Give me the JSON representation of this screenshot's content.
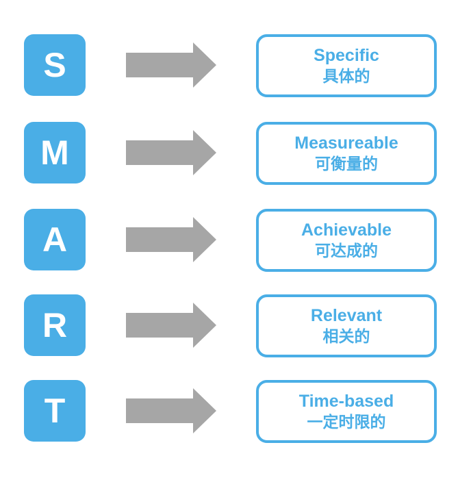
{
  "colors": {
    "accent": "#4aaee6",
    "arrow": "#a6a6a6",
    "background": "#ffffff"
  },
  "rows": [
    {
      "letter": "S",
      "english": "Specific",
      "chinese": "具体的"
    },
    {
      "letter": "M",
      "english": "Measureable",
      "chinese": "可衡量的"
    },
    {
      "letter": "A",
      "english": "Achievable",
      "chinese": "可达成的"
    },
    {
      "letter": "R",
      "english": "Relevant",
      "chinese": "相关的"
    },
    {
      "letter": "T",
      "english": "Time-based",
      "chinese": "一定时限的"
    }
  ]
}
